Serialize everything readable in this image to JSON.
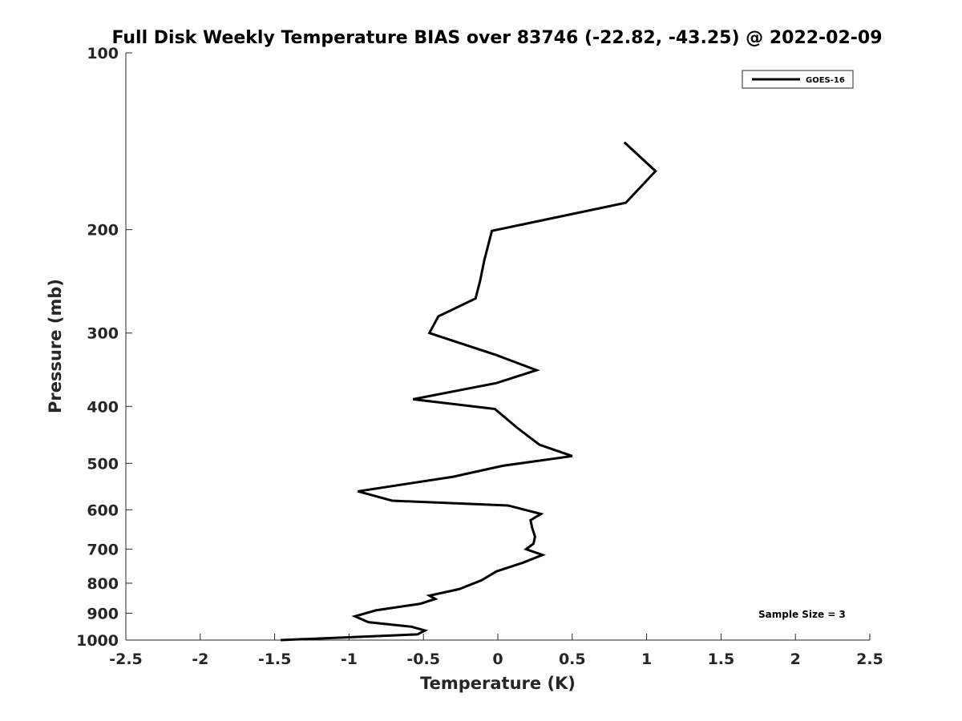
{
  "chart_data": {
    "type": "line",
    "title": "Full Disk Weekly Temperature BIAS over 83746 (-22.82, -43.25) @ 2022-02-09",
    "xlabel": "Temperature (K)",
    "ylabel": "Pressure (mb)",
    "xlim": [
      -2.5,
      2.5
    ],
    "ylim": [
      100,
      1000
    ],
    "y_scale": "log",
    "y_reversed": true,
    "x_ticks": [
      -2.5,
      -2,
      -1.5,
      -1,
      -0.5,
      0,
      0.5,
      1,
      1.5,
      2,
      2.5
    ],
    "x_tick_labels": [
      "-2.5",
      "-2",
      "-1.5",
      "-1",
      "-0.5",
      "0",
      "0.5",
      "1",
      "1.5",
      "2",
      "2.5"
    ],
    "y_ticks": [
      100,
      200,
      300,
      400,
      500,
      600,
      700,
      800,
      900,
      1000
    ],
    "y_tick_labels": [
      "100",
      "200",
      "300",
      "400",
      "500",
      "600",
      "700",
      "800",
      "900",
      "1000"
    ],
    "grid": false,
    "legend_position": "top-right",
    "annotation": "Sample Size = 3",
    "series": [
      {
        "name": "GOES-16",
        "color": "#000000",
        "x": [
          0.85,
          1.06,
          0.86,
          -0.04,
          -0.09,
          -0.12,
          -0.15,
          -0.4,
          -0.46,
          -0.01,
          0.26,
          -0.01,
          -0.57,
          -0.02,
          0.14,
          0.28,
          0.5,
          0.03,
          -0.3,
          -0.94,
          -0.71,
          0.07,
          0.29,
          0.22,
          0.23,
          0.25,
          0.24,
          0.19,
          0.3,
          0.17,
          -0.01,
          -0.11,
          -0.26,
          -0.46,
          -0.42,
          -0.52,
          -0.82,
          -0.96,
          -0.87,
          -0.58,
          -0.49,
          -0.54,
          -1.46
        ],
        "y": [
          142,
          159,
          180,
          201,
          225,
          245,
          262,
          281,
          300,
          327,
          347,
          365,
          389,
          404,
          437,
          465,
          486,
          505,
          527,
          558,
          579,
          590,
          610,
          625,
          643,
          667,
          685,
          700,
          716,
          738,
          764,
          791,
          819,
          840,
          851,
          867,
          890,
          911,
          932,
          949,
          963,
          978,
          1000
        ]
      }
    ]
  }
}
